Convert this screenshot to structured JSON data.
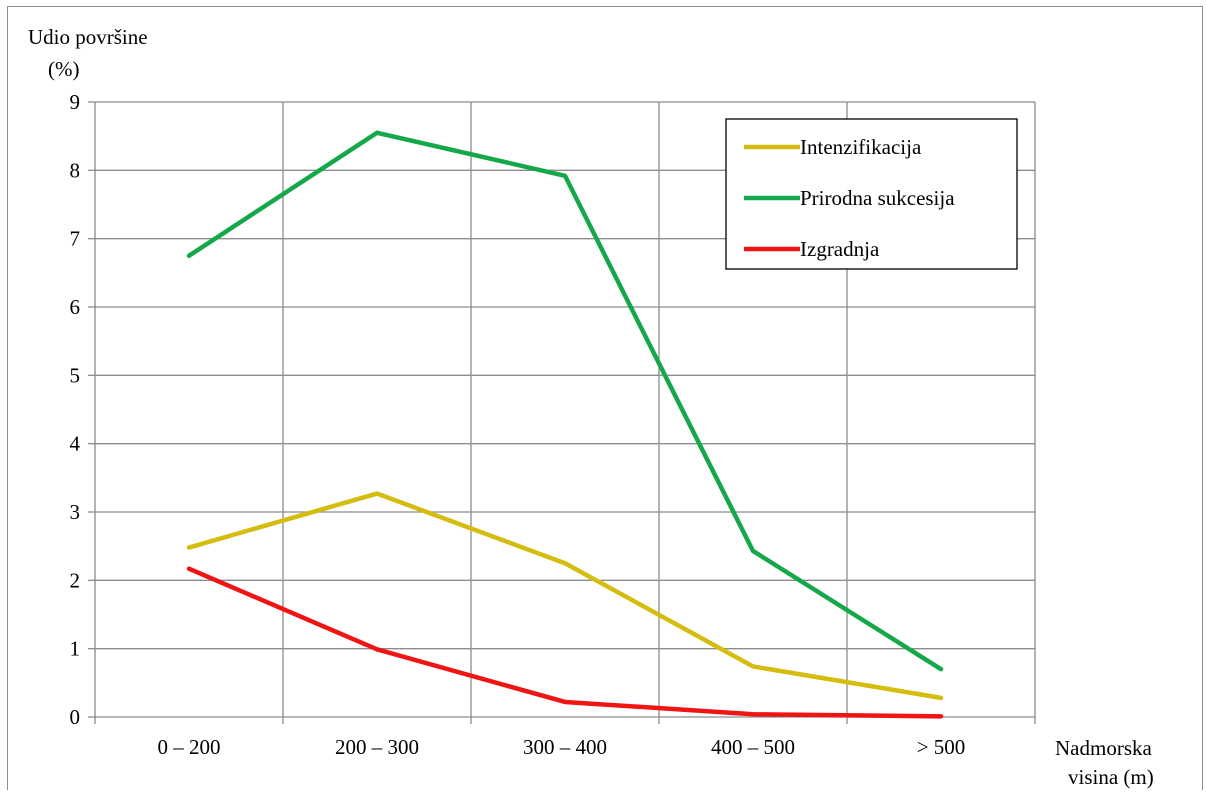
{
  "chart_data": {
    "type": "line",
    "ylabel_line1": "Udio površine",
    "ylabel_line2": "(%)",
    "xlabel_line1": "Nadmorska",
    "xlabel_line2": "visina  (m)",
    "categories": [
      "0 – 200",
      "200 – 300",
      "300 – 400",
      "400 – 500",
      "> 500"
    ],
    "ylim": [
      0,
      9
    ],
    "yticks": [
      "0",
      "1",
      "2",
      "3",
      "4",
      "5",
      "6",
      "7",
      "8",
      "9"
    ],
    "grid": true,
    "legend_position": "top-right",
    "series": [
      {
        "name": "Intenzifikacija",
        "color": "#d4bd0f",
        "values": [
          2.48,
          3.27,
          2.25,
          0.74,
          0.28
        ]
      },
      {
        "name": "Prirodna sukcesija",
        "color": "#15a84a",
        "values": [
          6.75,
          8.55,
          7.92,
          2.43,
          0.7
        ]
      },
      {
        "name": "Izgradnja",
        "color": "#f01414",
        "values": [
          2.17,
          0.99,
          0.22,
          0.04,
          0.01
        ]
      }
    ]
  }
}
